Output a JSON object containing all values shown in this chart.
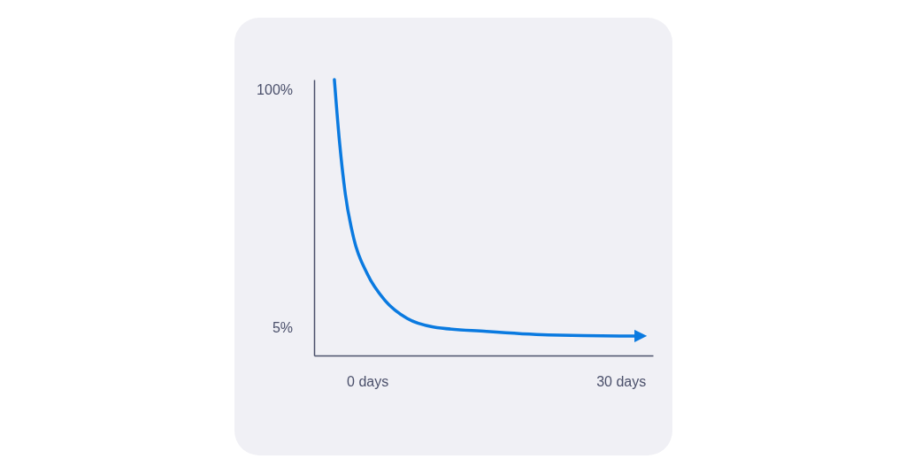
{
  "chart_data": {
    "type": "line",
    "x": [
      -3.9,
      -3.3,
      -2.6,
      -1.6,
      0,
      2.1,
      4.7,
      7.8,
      14.1,
      21.4,
      29.8,
      31.9
    ],
    "series": [
      {
        "color": "#0a7ae0",
        "values": [
          104,
          79.5,
          58.3,
          40.6,
          26.5,
          15.9,
          8.8,
          5.4,
          3.6,
          2.2,
          1.8,
          1.8
        ]
      }
    ],
    "xlim": [
      -6.3,
      33.8
    ],
    "ylim": [
      -6,
      104
    ],
    "xticks": [
      {
        "value": 0,
        "label": "0 days"
      },
      {
        "value": 30,
        "label": "30 days"
      }
    ],
    "yticks": [
      {
        "value": 100,
        "label": "100%"
      },
      {
        "value": 5,
        "label": "5%"
      }
    ]
  }
}
